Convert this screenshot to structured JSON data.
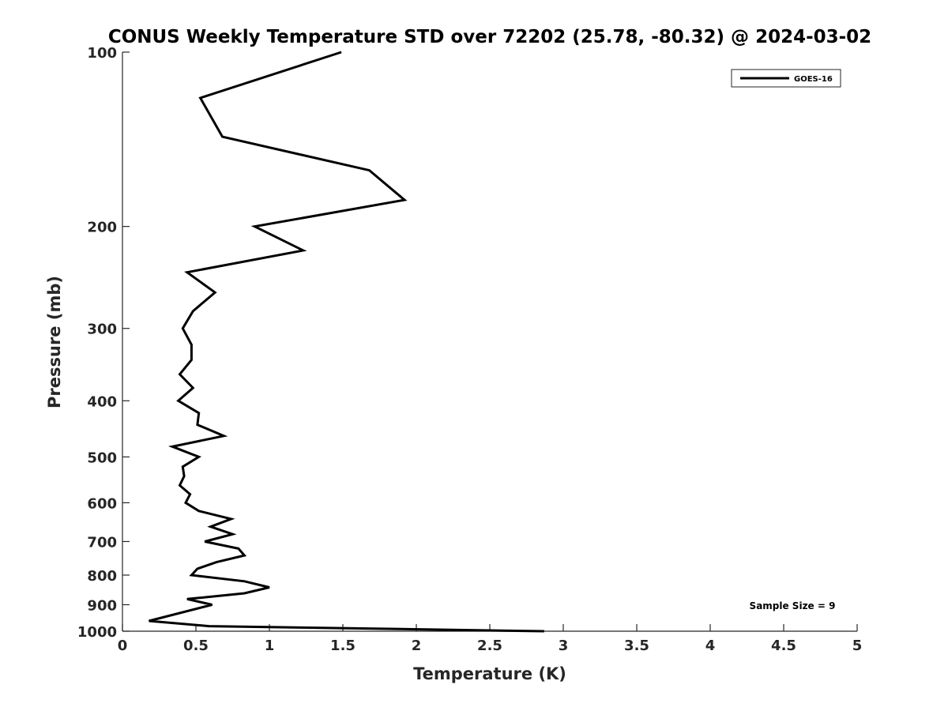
{
  "chart_data": {
    "type": "line",
    "title": "CONUS Weekly Temperature STD over 72202 (25.78, -80.32) @ 2024-03-02",
    "xlabel": "Temperature (K)",
    "ylabel": "Pressure (mb)",
    "xlim": [
      0,
      5
    ],
    "ylim": [
      100,
      1000
    ],
    "yscale": "log",
    "y_reversed": true,
    "xticks": [
      "0",
      "0.5",
      "1",
      "1.5",
      "2",
      "2.5",
      "3",
      "3.5",
      "4",
      "4.5",
      "5"
    ],
    "xtick_values": [
      0,
      0.5,
      1,
      1.5,
      2,
      2.5,
      3,
      3.5,
      4,
      4.5,
      5
    ],
    "yticks": [
      "100",
      "200",
      "300",
      "400",
      "500",
      "600",
      "700",
      "800",
      "900",
      "1000"
    ],
    "ytick_values": [
      100,
      200,
      300,
      400,
      500,
      600,
      700,
      800,
      900,
      1000
    ],
    "grid": false,
    "legend": {
      "placement": "top-right",
      "entries": [
        "GOES-16"
      ]
    },
    "annotation": "Sample Size = 9",
    "series": [
      {
        "name": "GOES-16",
        "color": "#000000",
        "pressure": [
          100,
          120,
          140,
          160,
          180,
          200,
          220,
          240,
          260,
          280,
          300,
          320,
          340,
          360,
          380,
          400,
          420,
          440,
          460,
          480,
          500,
          520,
          540,
          560,
          580,
          600,
          620,
          640,
          660,
          680,
          700,
          720,
          740,
          760,
          780,
          800,
          820,
          840,
          860,
          880,
          900,
          960,
          980,
          1000
        ],
        "values": [
          1.49,
          0.53,
          0.68,
          1.68,
          1.92,
          0.9,
          1.23,
          0.44,
          0.63,
          0.48,
          0.41,
          0.47,
          0.47,
          0.39,
          0.48,
          0.38,
          0.52,
          0.51,
          0.69,
          0.34,
          0.52,
          0.41,
          0.42,
          0.39,
          0.46,
          0.43,
          0.52,
          0.74,
          0.6,
          0.75,
          0.56,
          0.79,
          0.83,
          0.64,
          0.51,
          0.47,
          0.83,
          1.0,
          0.83,
          0.44,
          0.61,
          0.18,
          0.59,
          2.87
        ]
      }
    ]
  }
}
